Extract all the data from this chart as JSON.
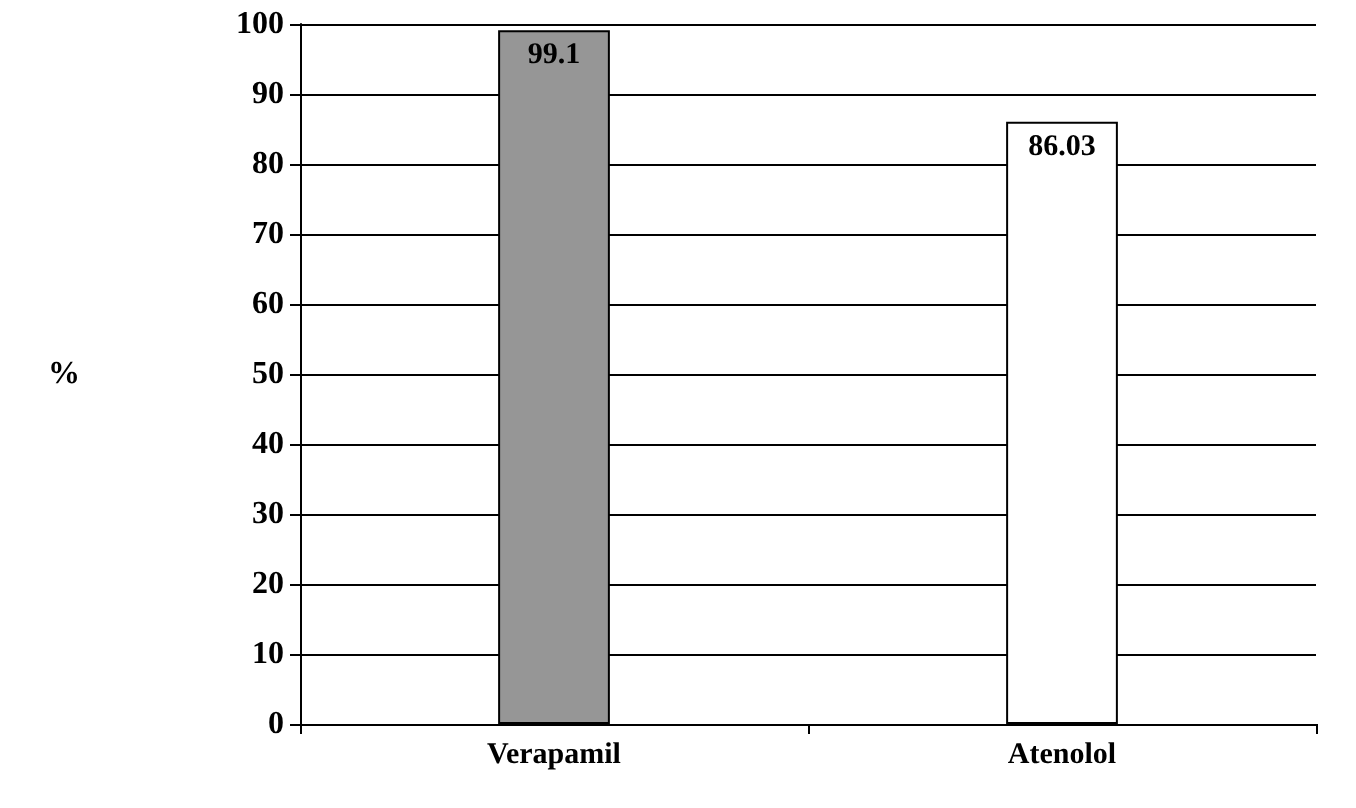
{
  "chart_data": {
    "type": "bar",
    "ylabel": "%",
    "categories": [
      "Verapamil",
      "Atenolol"
    ],
    "values": [
      99.1,
      86.03
    ],
    "colors": [
      "#969696",
      "#ffffff"
    ],
    "ylim": [
      0,
      100
    ],
    "yticks": [
      0,
      10,
      20,
      30,
      40,
      50,
      60,
      70,
      80,
      90,
      100
    ],
    "grid": "y",
    "data_labels": true
  }
}
